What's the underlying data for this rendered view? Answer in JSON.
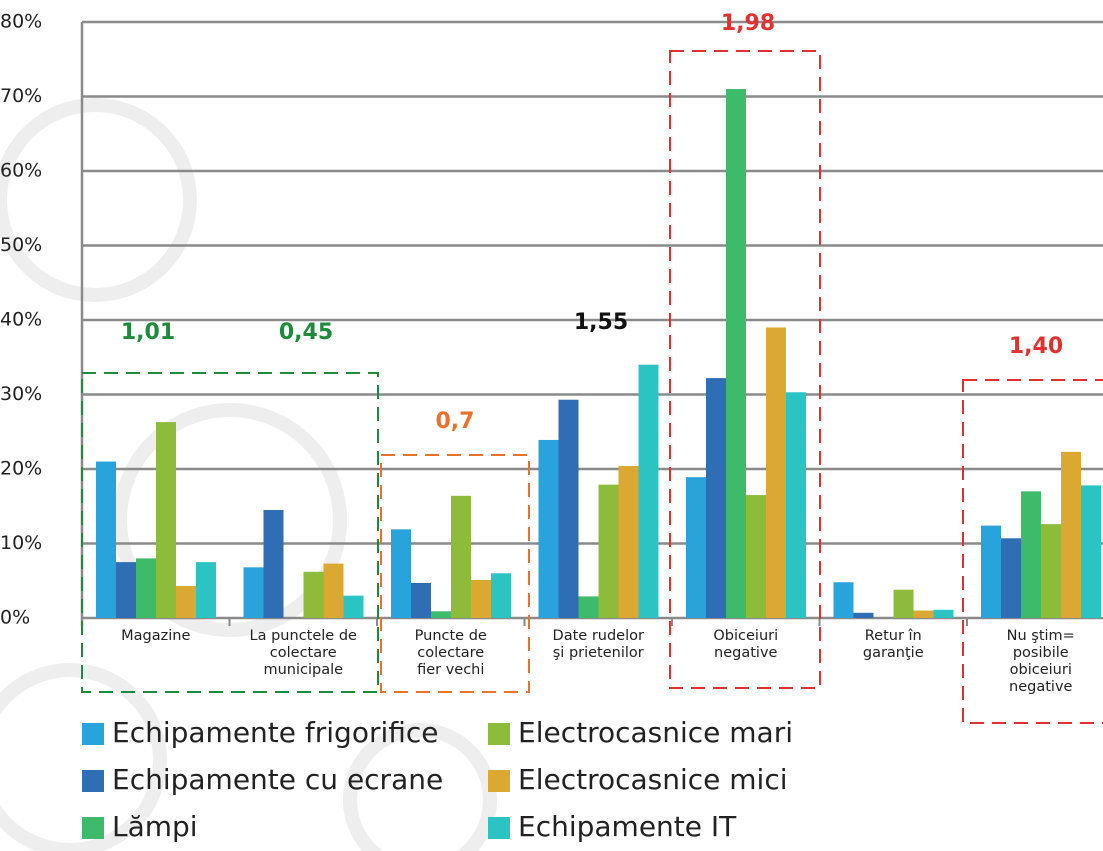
{
  "chart_data": {
    "type": "bar",
    "categories": [
      "Magazine",
      "La punctele de\ncolectare\nmunicipale",
      "Puncte de\ncolectare\nfier vechi",
      "Date rudelor\nşi prietenilor",
      "Obiceiuri\nnegative",
      "Retur în\ngaranţie",
      "Nu ştim=\nposibile\nobiceiuri\nnegative"
    ],
    "series": [
      {
        "name": "Echipamente frigorifice",
        "color": "#29a3dc",
        "values": [
          21,
          6.8,
          11.9,
          23.9,
          18.9,
          4.8,
          12.4
        ]
      },
      {
        "name": "Echipamente cu ecrane",
        "color": "#2f6db5",
        "values": [
          7.5,
          14.5,
          4.7,
          29.3,
          32.2,
          0.7,
          10.7
        ]
      },
      {
        "name": "Lămpi",
        "color": "#3dba6a",
        "values": [
          8,
          0,
          0.9,
          2.9,
          71,
          0,
          17
        ]
      },
      {
        "name": "Electrocasnice mari",
        "color": "#8dbb3a",
        "values": [
          26.3,
          6.2,
          16.4,
          17.9,
          16.5,
          3.8,
          12.6
        ]
      },
      {
        "name": "Electrocasnice mici",
        "color": "#dba932",
        "values": [
          4.3,
          7.3,
          5.1,
          20.4,
          39,
          1,
          22.3
        ]
      },
      {
        "name": "Echipamente IT",
        "color": "#2cc3c3",
        "values": [
          7.5,
          3,
          6,
          34,
          30.3,
          1.1,
          17.8
        ]
      }
    ],
    "ylim": [
      0,
      80
    ],
    "yticks": [
      {
        "value": 0,
        "label": "0%"
      },
      {
        "value": 10,
        "label": "10%"
      },
      {
        "value": 20,
        "label": "20%"
      },
      {
        "value": 30,
        "label": "30%"
      },
      {
        "value": 40,
        "label": "40%"
      },
      {
        "value": 50,
        "label": "50%"
      },
      {
        "value": 60,
        "label": "60%"
      },
      {
        "value": 70,
        "label": "70%"
      },
      {
        "value": 80,
        "label": "80%"
      }
    ],
    "grid": true,
    "annotations": [
      {
        "text": "1,01",
        "color": "#1e8a3c"
      },
      {
        "text": "0,45",
        "color": "#1e8a3c"
      },
      {
        "text": "0,7",
        "color": "#e8722a"
      },
      {
        "text": "1,55",
        "color": "#111111"
      },
      {
        "text": "1,98",
        "color": "#e03030"
      },
      {
        "text": "1,40",
        "color": "#e03030"
      }
    ]
  }
}
